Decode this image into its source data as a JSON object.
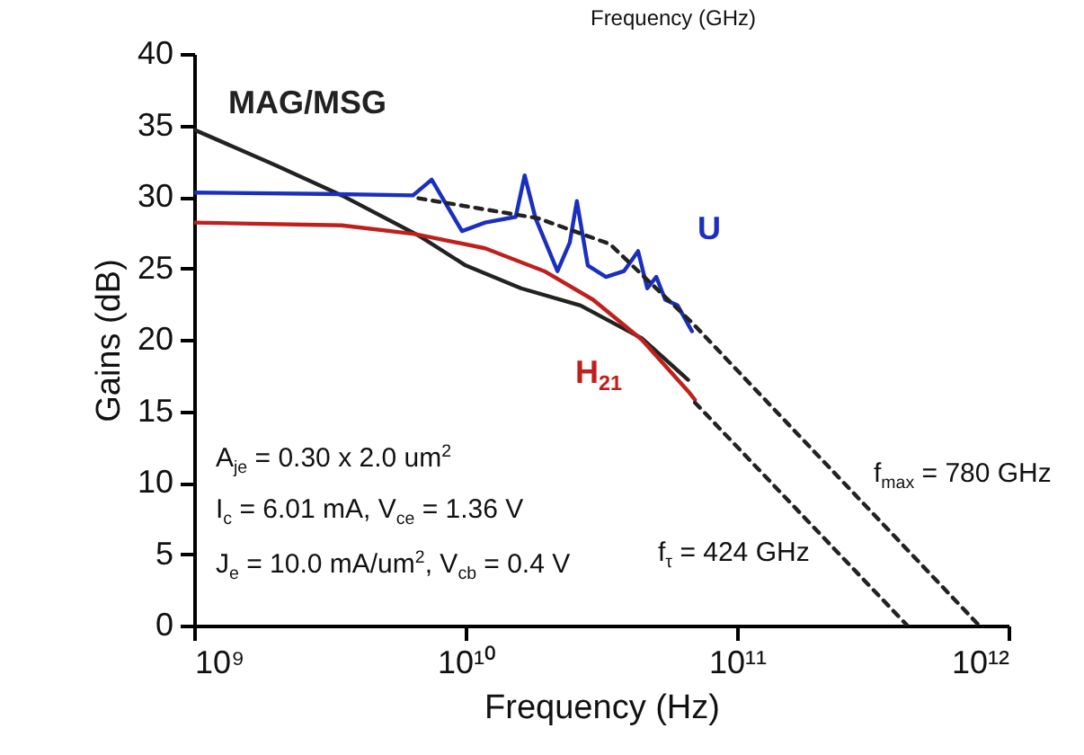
{
  "chart_data": {
    "type": "line",
    "title": "Frequency (GHz)",
    "xlabel": "Frequency (Hz)",
    "ylabel": "Gains (dB)",
    "log": "x",
    "xlim": [
      1000000000.0,
      1000000000000.0
    ],
    "ylim": [
      0,
      40
    ],
    "xticks": [
      {
        "value": 1000000000.0,
        "label": "10⁹"
      },
      {
        "value": 10000000000.0,
        "label": "10¹⁰"
      },
      {
        "value": 100000000000.0,
        "label": "10¹¹"
      },
      {
        "value": 1000000000000.0,
        "label": "10¹²"
      }
    ],
    "yticks": [
      0,
      5,
      10,
      15,
      20,
      25,
      30,
      35,
      40
    ],
    "grid": false,
    "marker": "none",
    "series": [
      {
        "name": "MAG/MSG",
        "color": "#222222",
        "line_style": "solid",
        "x": [
          1000000000.0,
          2000000000.0,
          3500000000.0,
          6700000000.0,
          10000000000.0,
          16000000000.0,
          26500000000.0,
          44600000000.0,
          66000000000.0
        ],
        "values": [
          34.7,
          32.2,
          30.1,
          27.3,
          25.2,
          23.6,
          22.4,
          20.1,
          17.2
        ]
      },
      {
        "name": "U",
        "color": "#1a2fbf",
        "line_style": "solid",
        "x": [
          1000000000.0,
          3000000000.0,
          6400000000.0,
          7500000000.0,
          9700000000.0,
          11800000000.0,
          15300000000.0,
          16500000000.0,
          18100000000.0,
          21800000000.0,
          24200000000.0,
          25700000000.0,
          28200000000.0,
          32900000000.0,
          38300000000.0,
          43200000000.0,
          46700000000.0,
          50400000000.0,
          54400000000.0,
          60400000000.0,
          68200000000.0
        ],
        "values": [
          30.3,
          30.2,
          30.1,
          31.2,
          27.6,
          28.2,
          28.6,
          31.5,
          28.5,
          24.8,
          26.8,
          29.7,
          25.2,
          24.4,
          24.8,
          26.2,
          23.6,
          24.4,
          22.8,
          22.4,
          20.6
        ]
      },
      {
        "name": "H$_{21}$",
        "color": "#c0201c",
        "line_style": "solid",
        "x": [
          1000000000.0,
          3500000000.0,
          6500000000.0,
          11800000000.0,
          19500000000.0,
          29500000000.0,
          44600000000.0,
          66000000000.0,
          70000000000.0
        ],
        "values": [
          28.2,
          28.0,
          27.4,
          26.4,
          24.8,
          22.8,
          20.0,
          16.4,
          15.8
        ]
      },
      {
        "color": "#222222",
        "line_style": "dashed",
        "x": [
          6700000000.0,
          18500000000.0,
          34000000000.0,
          68200000000.0,
          780000000000.0
        ],
        "values": [
          29.9,
          28.5,
          26.7,
          21.2,
          0
        ]
      },
      {
        "color": "#222222",
        "line_style": "dashed",
        "x": [
          70000000000.0,
          424000000000.0
        ],
        "values": [
          15.6,
          0
        ]
      }
    ],
    "annotations": [
      "A$_{je}$ = 0.30 x 2.0 um$^{2}$",
      "I$_{c}$ = 6.01 mA, V$_{ce}$ = 1.36 V",
      "J$_{e}$ = 10.0 mA/um$^{2}$, V$_{cb}$ = 0.4 V",
      "f$_{max}$ = 780 GHz",
      "f$_{τ}$ = 424 GHz"
    ]
  }
}
